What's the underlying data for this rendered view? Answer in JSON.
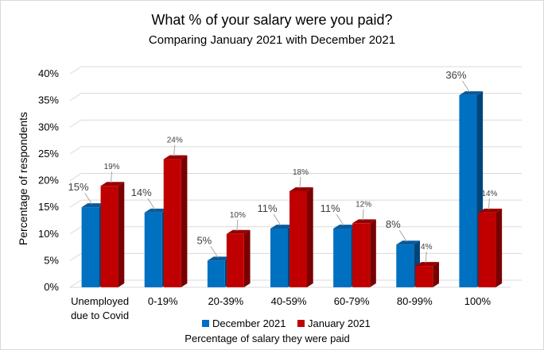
{
  "chart_data": {
    "type": "bar",
    "title": "What % of your salary were you paid?",
    "subtitle": "Comparing January 2021 with December 2021",
    "xlabel": "Percentage of salary they were paid",
    "ylabel": "Percentage of respondents",
    "categories": [
      [
        "Unemployed",
        "due to Covid"
      ],
      [
        "0-19%"
      ],
      [
        "20-39%"
      ],
      [
        "40-59%"
      ],
      [
        "60-79%"
      ],
      [
        "80-99%"
      ],
      [
        "100%"
      ]
    ],
    "series": [
      {
        "name": "December 2021",
        "values": [
          15,
          14,
          5,
          11,
          11,
          8,
          36
        ],
        "labels": [
          "15%",
          "14%",
          "5%",
          "11%",
          "11%",
          "8%",
          "36%"
        ],
        "color": "#0070c0",
        "side": "#00457a",
        "top": "#0a5a9c"
      },
      {
        "name": "January 2021",
        "values": [
          19,
          24,
          10,
          18,
          12,
          4,
          14
        ],
        "labels": [
          "19%",
          "24%",
          "10%",
          "18%",
          "12%",
          "4%",
          "14%"
        ],
        "color": "#c00000",
        "side": "#7a0000",
        "top": "#980000"
      }
    ],
    "ylim": [
      0,
      40
    ],
    "yticks": [
      "0%",
      "5%",
      "10%",
      "15%",
      "20%",
      "25%",
      "30%",
      "35%",
      "40%"
    ],
    "grid": true,
    "legend": "bottom"
  }
}
